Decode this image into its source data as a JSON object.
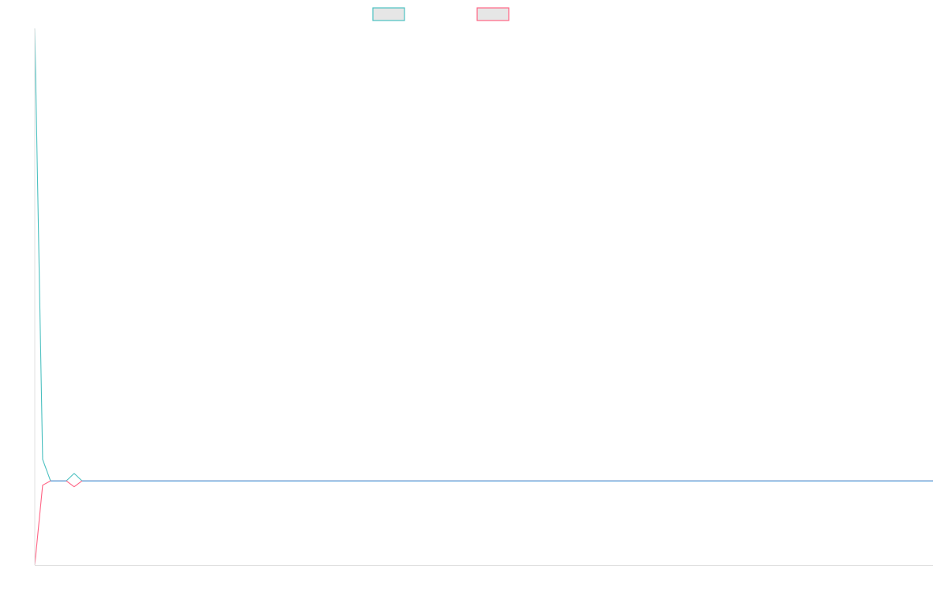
{
  "colors": {
    "series_a": "#4bc0c0",
    "series_b": "#ff6384",
    "overlap": "#36a2eb",
    "axis": "#e0e0e0"
  },
  "chart_data": {
    "type": "line",
    "title": "",
    "xlabel": "",
    "ylabel": "",
    "grid": false,
    "legend_position": "top",
    "x": [
      0,
      1,
      2,
      3,
      4,
      5,
      6,
      7,
      8,
      9,
      10,
      11,
      12,
      13,
      14,
      15,
      16,
      17,
      18,
      19,
      20,
      21,
      22,
      23,
      24,
      25,
      26,
      27,
      28,
      29,
      30,
      31,
      32,
      33,
      34,
      35,
      36,
      37,
      38,
      39,
      40,
      41,
      42,
      43,
      44,
      45,
      46,
      47,
      48,
      49,
      50,
      51,
      52,
      53,
      54,
      55,
      56,
      57,
      58,
      59,
      60,
      61,
      62,
      63,
      64,
      65,
      66,
      67,
      68,
      69,
      70,
      71,
      72,
      73,
      74,
      75,
      76,
      77,
      78,
      79,
      80,
      81,
      82,
      83,
      84,
      85,
      86,
      87,
      88,
      89,
      90,
      91,
      92,
      93,
      94,
      95,
      96,
      97,
      98,
      99,
      100,
      101,
      102,
      103,
      104,
      105,
      106,
      107,
      108,
      109,
      110,
      111,
      112,
      113,
      114
    ],
    "ylim": [
      0,
      1
    ],
    "series": [
      {
        "name": "",
        "color": "#4bc0c0",
        "values": [
          1.0,
          0.197,
          0.157,
          0.157,
          0.157,
          0.171,
          0.157,
          0.157,
          0.157,
          0.157,
          0.157,
          0.157,
          0.157,
          0.157,
          0.157,
          0.157,
          0.157,
          0.157,
          0.157,
          0.157,
          0.157,
          0.157,
          0.157,
          0.157,
          0.157,
          0.157,
          0.157,
          0.157,
          0.157,
          0.157,
          0.157,
          0.157,
          0.157,
          0.157,
          0.157,
          0.157,
          0.157,
          0.157,
          0.157,
          0.157,
          0.157,
          0.157,
          0.157,
          0.157,
          0.157,
          0.157,
          0.157,
          0.157,
          0.157,
          0.157,
          0.157,
          0.157,
          0.157,
          0.157,
          0.157,
          0.157,
          0.157,
          0.157,
          0.157,
          0.157,
          0.157,
          0.157,
          0.157,
          0.157,
          0.157,
          0.157,
          0.157,
          0.157,
          0.157,
          0.157,
          0.157,
          0.157,
          0.157,
          0.157,
          0.157,
          0.157,
          0.157,
          0.157,
          0.157,
          0.157,
          0.157,
          0.157,
          0.157,
          0.157,
          0.157,
          0.157,
          0.157,
          0.157,
          0.157,
          0.157,
          0.157,
          0.157,
          0.157,
          0.157,
          0.157,
          0.157,
          0.157,
          0.157,
          0.157,
          0.157,
          0.157,
          0.157,
          0.157,
          0.157,
          0.157,
          0.157,
          0.157,
          0.157,
          0.157,
          0.157,
          0.157,
          0.157,
          0.157,
          0.157,
          0.157
        ]
      },
      {
        "name": "",
        "color": "#ff6384",
        "values": [
          0.0,
          0.149,
          0.157,
          0.157,
          0.157,
          0.146,
          0.157,
          0.157,
          0.157,
          0.157,
          0.157,
          0.157,
          0.157,
          0.157,
          0.157,
          0.157,
          0.157,
          0.157,
          0.157,
          0.157,
          0.157,
          0.157,
          0.157,
          0.157,
          0.157,
          0.157,
          0.157,
          0.157,
          0.157,
          0.157,
          0.157,
          0.157,
          0.157,
          0.157,
          0.157,
          0.157,
          0.157,
          0.157,
          0.157,
          0.157,
          0.157,
          0.157,
          0.157,
          0.157,
          0.157,
          0.157,
          0.157,
          0.157,
          0.157,
          0.157,
          0.157,
          0.157,
          0.157,
          0.157,
          0.157,
          0.157,
          0.157,
          0.157,
          0.157,
          0.157,
          0.157,
          0.157,
          0.157,
          0.157,
          0.157,
          0.157,
          0.157,
          0.157,
          0.157,
          0.157,
          0.157,
          0.157,
          0.157,
          0.157,
          0.157,
          0.157,
          0.157,
          0.157,
          0.157,
          0.157,
          0.157,
          0.157,
          0.157,
          0.157,
          0.157,
          0.157,
          0.157,
          0.157,
          0.157,
          0.157,
          0.157,
          0.157,
          0.157,
          0.157,
          0.157,
          0.157,
          0.157,
          0.157,
          0.157,
          0.157,
          0.157,
          0.157,
          0.157,
          0.157,
          0.157,
          0.157,
          0.157,
          0.157,
          0.157,
          0.157,
          0.157,
          0.157,
          0.157,
          0.157,
          0.157
        ]
      }
    ]
  }
}
